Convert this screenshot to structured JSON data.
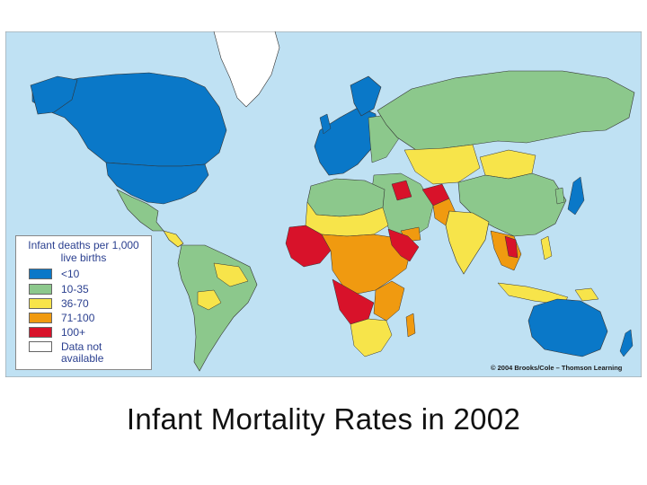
{
  "slide": {
    "title": "Infant Mortality Rates in 2002"
  },
  "map": {
    "credit": "© 2004 Brooks/Cole – Thomson Learning",
    "ocean_color": "#bfe1f3",
    "legend": {
      "title_line1": "Infant deaths per 1,000",
      "title_line2": "live births",
      "items": [
        {
          "label": "<10",
          "color": "#0a78c8"
        },
        {
          "label": "10-35",
          "color": "#8cc88c"
        },
        {
          "label": "36-70",
          "color": "#f7e44a"
        },
        {
          "label": "71-100",
          "color": "#f09a10"
        },
        {
          "label": "100+",
          "color": "#d8122a"
        },
        {
          "label": "Data not",
          "label2": "available",
          "color": "#ffffff"
        }
      ]
    }
  }
}
